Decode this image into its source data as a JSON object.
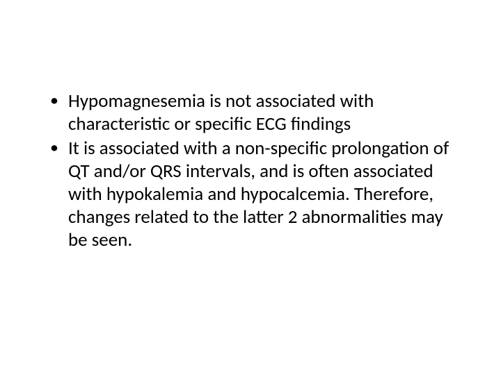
{
  "slide": {
    "background_color": "#ffffff",
    "text_color": "#000000",
    "font_family": "Calibri",
    "body_fontsize_pt": 20,
    "bullets": [
      "Hypomagnesemia is not associated with characteristic or specific ECG findings",
      "It is associated with a non-specific prolongation of QT and/or QRS intervals, and is often associated with hypokalemia and hypocalcemia. Therefore, changes related to the latter 2 abnormalities may be seen."
    ]
  }
}
